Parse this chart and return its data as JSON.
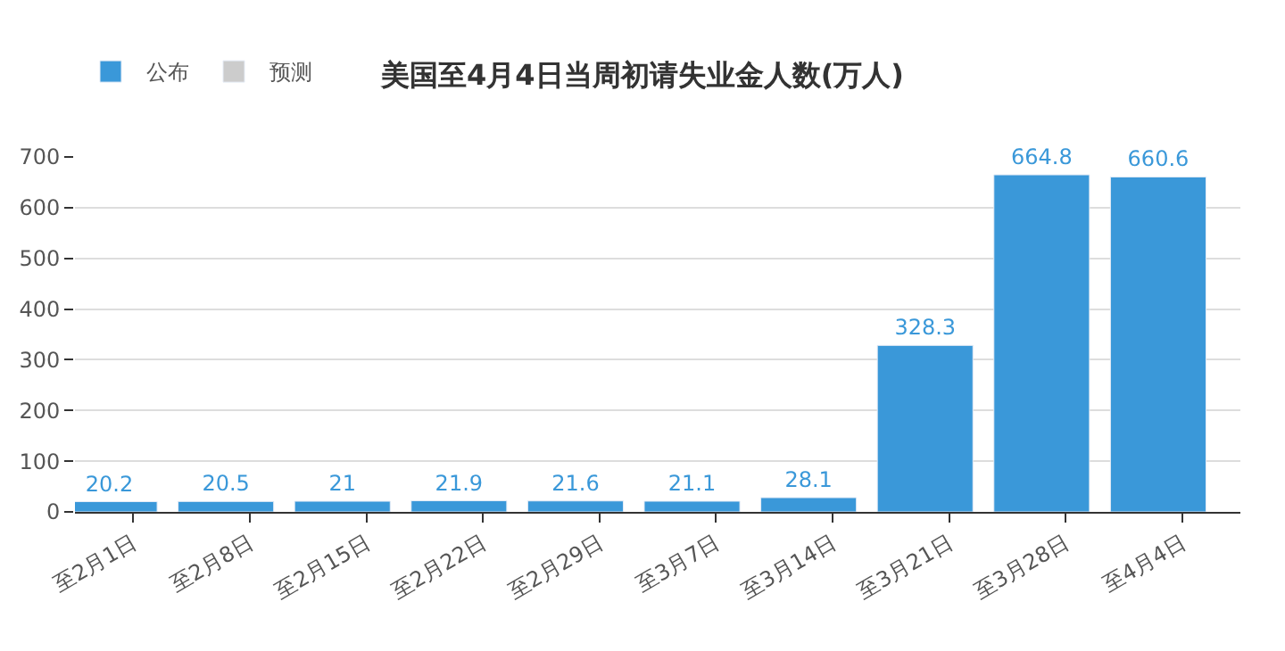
{
  "chart_data": {
    "type": "bar",
    "title": "美国至4月4日当周初请失业金人数(万人)",
    "categories": [
      "至2月1日",
      "至2月8日",
      "至2月15日",
      "至2月22日",
      "至2月29日",
      "至3月7日",
      "至3月14日",
      "至3月21日",
      "至3月28日",
      "至4月4日"
    ],
    "series": [
      {
        "name": "公布",
        "color": "#3a98d9",
        "values": [
          20.2,
          20.5,
          21,
          21.9,
          21.6,
          21.1,
          28.1,
          328.3,
          664.8,
          660.6
        ]
      },
      {
        "name": "预测",
        "color": "#cccccc",
        "values": [
          null,
          null,
          null,
          null,
          null,
          null,
          null,
          null,
          null,
          null
        ]
      }
    ],
    "ylim": [
      0,
      700
    ],
    "yticks": [
      0,
      100,
      200,
      300,
      400,
      500,
      600,
      700
    ],
    "grid": "y",
    "legend": "top left",
    "data_labels": true
  }
}
